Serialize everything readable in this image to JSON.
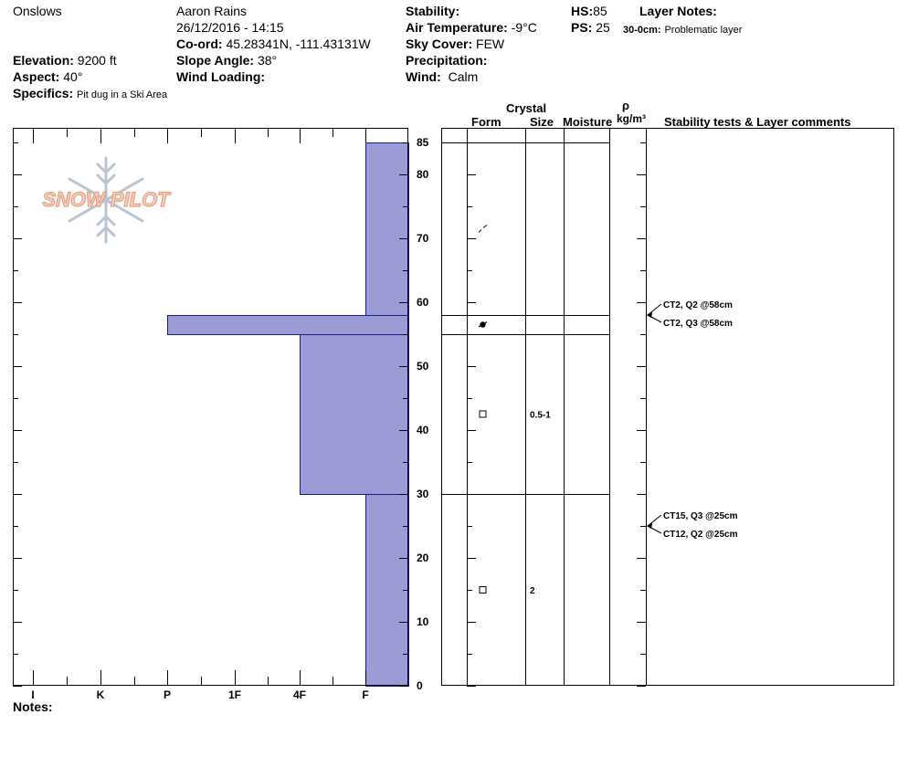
{
  "header": {
    "location": "Onslows",
    "observer": "Aaron Rains",
    "datetime": "26/12/2016 - 14:15",
    "coord_label": "Co-ord:",
    "coord_value": "45.28341N, -111.43131W",
    "elevation_label": "Elevation:",
    "elevation_value": "9200 ft",
    "aspect_label": "Aspect:",
    "aspect_value": "40°",
    "slope_label": "Slope Angle:",
    "slope_value": "38°",
    "wind_loading_label": "Wind Loading:",
    "wind_loading_value": "",
    "specifics_label": "Specifics:",
    "specifics_value": "Pit dug in a Ski Area",
    "stability_label": "Stability:",
    "stability_value": "",
    "air_temp_label": "Air Temperature:",
    "air_temp_value": "-9°C",
    "sky_label": "Sky Cover:",
    "sky_value": "FEW",
    "precip_label": "Precipitation:",
    "precip_value": "",
    "wind_label": "Wind:",
    "wind_value": "Calm",
    "hs_label": "HS:",
    "hs_value": "85",
    "ps_label": "PS:",
    "ps_value": "25",
    "layer_notes_label": "Layer Notes:",
    "layer_note_range": "30-0cm:",
    "layer_note_text": "Problematic layer"
  },
  "columns": {
    "crystal": "Crystal",
    "form": "Form",
    "size": "Size",
    "moisture": "Moisture",
    "rho": "ρ",
    "density_unit": "kg/m³",
    "comments": "Stability tests & Layer comments"
  },
  "notes_label": "Notes:",
  "colors": {
    "hardness_fill": "#9b9bd6",
    "hardness_stroke": "#1a1a8a",
    "logo": "#e8a080",
    "flake": "#b8c4d0"
  },
  "logo_text": "SNOW PILOT",
  "chart_data": {
    "type": "bar",
    "orientation": "horizontal",
    "depth_range": [
      0,
      85
    ],
    "depth_ticks": [
      0,
      10,
      20,
      30,
      40,
      50,
      60,
      70,
      80,
      85
    ],
    "hardness_scale": [
      "I",
      "K",
      "P",
      "1F",
      "4F",
      "F"
    ],
    "layers": [
      {
        "top": 85,
        "bottom": 58,
        "hardness": "F"
      },
      {
        "top": 58,
        "bottom": 55,
        "hardness": "P"
      },
      {
        "top": 55,
        "bottom": 30,
        "hardness": "4F"
      },
      {
        "top": 30,
        "bottom": 0,
        "hardness": "F"
      }
    ],
    "layer_boundaries": [
      85,
      58,
      55,
      30
    ],
    "crystals": [
      {
        "depth": 71.5,
        "form": "decomposing-fragments-icon",
        "size": ""
      },
      {
        "depth": 56.5,
        "form": "graupel-icon",
        "size": ""
      },
      {
        "depth": 42.5,
        "form": "faceted-crystals-icon",
        "size": "0.5-1"
      },
      {
        "depth": 15,
        "form": "faceted-crystals-icon",
        "size": "2"
      }
    ],
    "stability_tests": [
      {
        "depth": 58,
        "text": "CT2, Q2 @58cm"
      },
      {
        "depth": 58,
        "text": "CT2, Q3 @58cm"
      },
      {
        "depth": 25,
        "text": "CT15, Q3 @25cm"
      },
      {
        "depth": 25,
        "text": "CT12, Q2 @25cm"
      }
    ]
  }
}
